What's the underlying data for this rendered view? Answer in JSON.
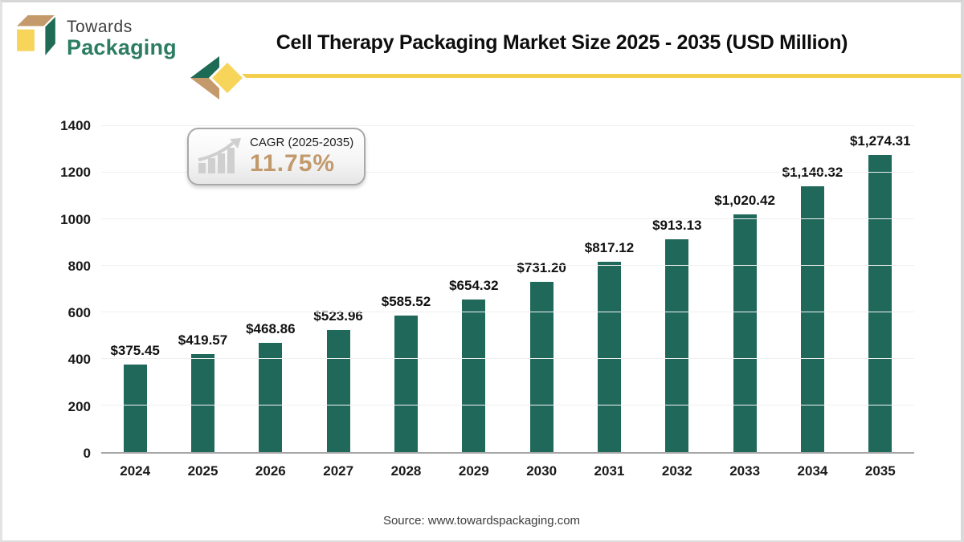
{
  "page": {
    "title": "Cell Therapy Packaging Market Size 2025 - 2035 (USD Million)",
    "source": "Source: www.towardspackaging.com"
  },
  "logo": {
    "line1": "Towards",
    "line2": "Packaging"
  },
  "badge": {
    "label": "CAGR (2025-2035)",
    "value": "11.75%"
  },
  "colors": {
    "bar_green": "#20695a",
    "logo_green": "#2c7d61",
    "accent_yellow": "#f3cf4d",
    "diamond_yellow": "#f7d45a",
    "tan": "#c49a6c",
    "badge_value_tan": "#c2996a",
    "gridline": "#f0f0f0",
    "axis": "#a6a6a6"
  },
  "chart_data": {
    "type": "bar",
    "title": "Cell Therapy Packaging Market Size 2025 - 2035 (USD Million)",
    "xlabel": "",
    "ylabel": "",
    "categories": [
      "2024",
      "2025",
      "2026",
      "2027",
      "2028",
      "2029",
      "2030",
      "2031",
      "2032",
      "2033",
      "2034",
      "2035"
    ],
    "values": [
      375.45,
      419.57,
      468.86,
      523.96,
      585.52,
      654.32,
      731.2,
      817.12,
      913.13,
      1020.42,
      1140.32,
      1274.31
    ],
    "labels": [
      "$375.45",
      "$419.57",
      "$468.86",
      "$523.96",
      "$585.52",
      "$654.32",
      "$731.20",
      "$817.12",
      "$913.13",
      "$1,020.42",
      "$1,140.32",
      "$1,274.31"
    ],
    "ylim": [
      0,
      1400
    ],
    "yticks": [
      0,
      200,
      400,
      600,
      800,
      1000,
      1200,
      1400
    ],
    "grid": true,
    "legend": false,
    "bar_color": "#20695a"
  }
}
